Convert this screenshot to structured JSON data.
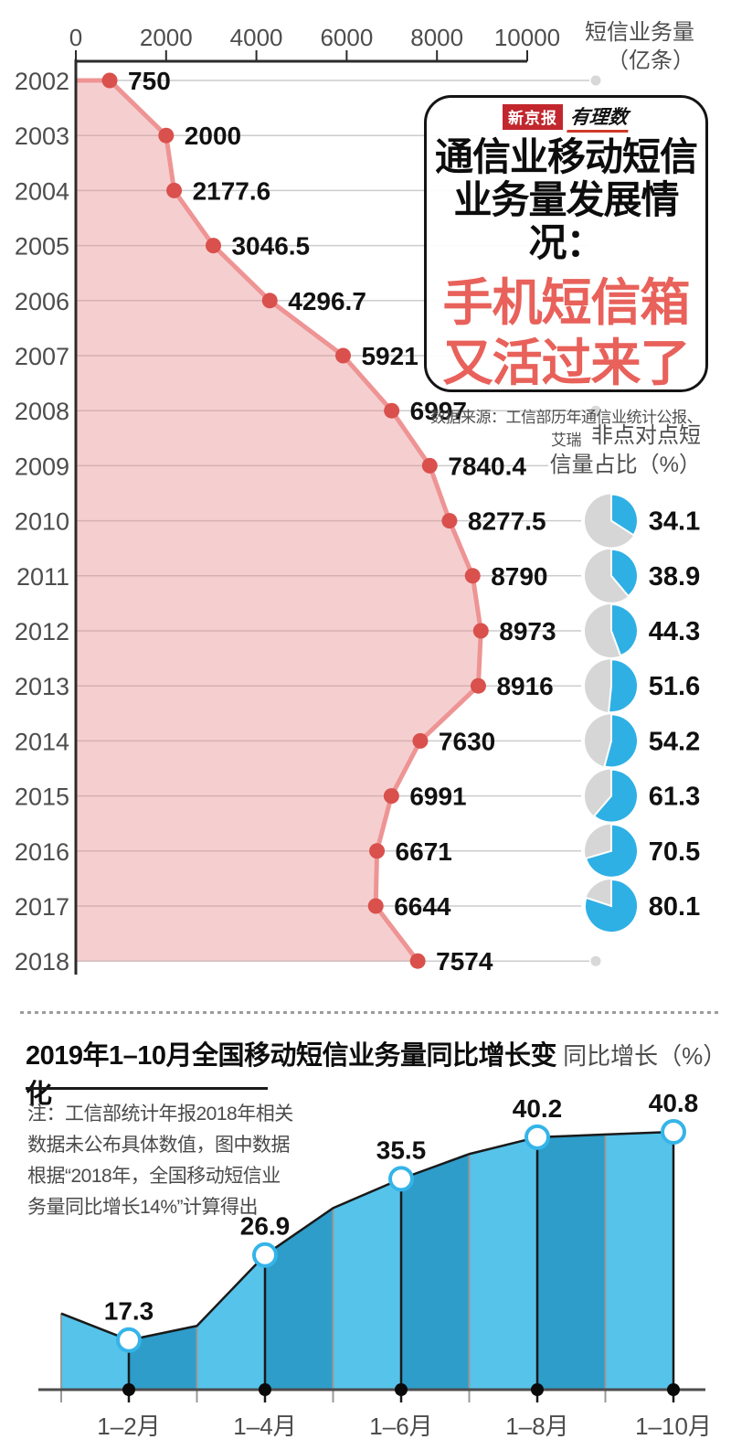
{
  "colors": {
    "pink_fill": "rgba(232,140,140,0.42)",
    "pink_line": "#EE9494",
    "red_dot": "#D9504C",
    "grid": "#CCCCCC",
    "axis_dark": "#2B2B2B",
    "text_gray": "#4D4D4D",
    "value_black": "#111111",
    "gray_dot": "#D8D8D8",
    "pie_blue": "#2EB0E5",
    "pie_gray": "#D6D6D6",
    "area_light": "#56C3EA",
    "area_dark": "#2E9DC9",
    "line_black": "#1A1A1A",
    "circle_ring": "#35B4E8",
    "baseline_gray": "#4D4D4D",
    "title_red": "#E8615A",
    "logo_red": "#C1272D"
  },
  "top_axis": {
    "unit_lines": [
      "短信业务量",
      "（亿条）"
    ]
  },
  "pie_panel": {
    "label_lines": [
      "非点对点短",
      "信量占比（%）"
    ]
  },
  "title_box": {
    "logo_brand": "新京报",
    "logo_column": "有理数",
    "heading_lines": [
      "通信业移动短信",
      "业务量发展情况："
    ],
    "highlight_lines": [
      "手机短信箱",
      "又活过来了"
    ],
    "source": "数据来源：工信部历年通信业统计公报、艾瑞"
  },
  "bottom": {
    "title": "2019年1–10月全国移动短信业务量同比增长变化",
    "unit": "同比增长（%）",
    "note": {
      "lines": [
        "注：工信部统计年报2018年相关",
        "数据未公布具体数值，图中数据",
        "根据“2018年，全国移动短信业",
        "务量同比增长14%”计算得出"
      ]
    }
  },
  "chart_data": [
    {
      "id": "sms-volume-by-year",
      "type": "area",
      "orientation": "horizontal",
      "ylabel": "短信业务量（亿条）",
      "axis_range": [
        0,
        10000
      ],
      "axis_ticks": [
        0,
        2000,
        4000,
        6000,
        8000,
        10000
      ],
      "grid": true,
      "categories": [
        2002,
        2003,
        2004,
        2005,
        2006,
        2007,
        2008,
        2009,
        2010,
        2011,
        2012,
        2013,
        2014,
        2015,
        2016,
        2017,
        2018
      ],
      "values": [
        750,
        2000,
        2177.6,
        3046.5,
        4296.7,
        5921,
        6997,
        7840.4,
        8277.5,
        8790,
        8973,
        8916,
        7630,
        6991,
        6671,
        6644,
        7574
      ],
      "endpoint_marker_years": [
        2002,
        2008,
        2018
      ]
    },
    {
      "id": "non-p2p-sms-share",
      "type": "pie",
      "title": "非点对点短信量占比（%）",
      "categories": [
        2010,
        2011,
        2012,
        2013,
        2014,
        2015,
        2016,
        2017
      ],
      "values": [
        34.1,
        38.9,
        44.3,
        51.6,
        54.2,
        61.3,
        70.5,
        80.1
      ]
    },
    {
      "id": "yoy-growth-2019",
      "type": "area",
      "title": "2019年1–10月全国移动短信业务量同比增长变化",
      "ylabel": "同比增长（%）",
      "categories": [
        "1–2月",
        "1–4月",
        "1–6月",
        "1–8月",
        "1–10月"
      ],
      "values": [
        17.3,
        26.9,
        35.5,
        40.2,
        40.8
      ],
      "ylim": [
        11.7,
        45
      ],
      "legend": "none",
      "profile_points": [
        {
          "value": 20.3,
          "label": "",
          "estimated": true
        },
        {
          "value": 17.3,
          "label": "1–2月"
        },
        {
          "value": 18.9,
          "label": "",
          "estimated": true
        },
        {
          "value": 26.9,
          "label": "1–4月"
        },
        {
          "value": 32.2,
          "label": "",
          "estimated": true
        },
        {
          "value": 35.5,
          "label": "1–6月"
        },
        {
          "value": 38.3,
          "label": "",
          "estimated": true
        },
        {
          "value": 40.2,
          "label": "1–8月"
        },
        {
          "value": 40.5,
          "label": "",
          "estimated": true
        },
        {
          "value": 40.8,
          "label": "1–10月"
        }
      ]
    }
  ]
}
